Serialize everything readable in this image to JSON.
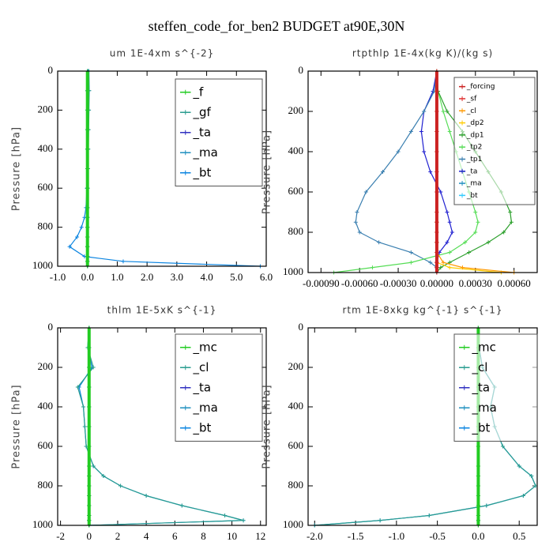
{
  "title": "steffen_code_for_ben2  BUDGET at90E,30N",
  "chart_data": [
    {
      "type": "line",
      "title": "um  1E-4xm s^{-2}",
      "ylabel": "Pressure [hPa]",
      "y": [
        0,
        100,
        200,
        300,
        400,
        500,
        600,
        700,
        750,
        800,
        850,
        900,
        950,
        975,
        1000
      ],
      "ylim": [
        1000,
        0
      ],
      "yticks": [
        0,
        200,
        400,
        600,
        800,
        1000
      ],
      "xlim": [
        -1,
        6
      ],
      "xticks": [
        {
          "value": -1,
          "label": "-1.0"
        },
        {
          "value": 0,
          "label": "0.0"
        },
        {
          "value": 1,
          "label": "1.0"
        },
        {
          "value": 2,
          "label": "2.0"
        },
        {
          "value": 3,
          "label": "3.0"
        },
        {
          "value": 4,
          "label": "4.0"
        },
        {
          "value": 5,
          "label": "5.0"
        },
        {
          "value": 6,
          "label": "6.0"
        }
      ],
      "legend": "upper right",
      "series": [
        {
          "name": "_f",
          "color": "#22cc22",
          "values": [
            0,
            0,
            0,
            0,
            0,
            0,
            0,
            0,
            0,
            0,
            0,
            0,
            0,
            0,
            0
          ]
        },
        {
          "name": "_gf",
          "color": "#2a9d8f",
          "values": [
            0.05,
            0.06,
            0.05,
            0.04,
            0.03,
            0.02,
            0.01,
            0,
            0,
            0,
            0,
            0,
            0,
            0,
            0
          ]
        },
        {
          "name": "_ta",
          "color": "#3030c0",
          "values": [
            0,
            0,
            0,
            0,
            0,
            0,
            0,
            0,
            0,
            0,
            0,
            0,
            0,
            0,
            0
          ]
        },
        {
          "name": "_ma",
          "color": "#1f8fbf",
          "values": [
            0,
            0,
            0,
            0,
            0,
            0,
            0,
            0,
            0,
            0,
            0,
            0,
            0,
            0,
            0
          ]
        },
        {
          "name": "_bt",
          "color": "#0a84e0",
          "values": [
            0.03,
            0.04,
            0.03,
            0.02,
            0.01,
            0,
            -0.02,
            -0.05,
            -0.1,
            -0.2,
            -0.35,
            -0.6,
            -0.1,
            1.2,
            5.8
          ]
        }
      ]
    },
    {
      "type": "line",
      "title": "rtpthlp  1E-4x(kg K)/(kg s)",
      "ylabel": "Pressure [hPa]",
      "y": [
        0,
        100,
        200,
        300,
        400,
        500,
        600,
        700,
        750,
        800,
        850,
        900,
        950,
        975,
        1000
      ],
      "ylim": [
        1000,
        0
      ],
      "yticks": [
        0,
        200,
        400,
        600,
        800,
        1000
      ],
      "xlim": [
        -0.001,
        0.00078
      ],
      "xticks": [
        {
          "value": -0.0009,
          "label": "-0.00090"
        },
        {
          "value": -0.0006,
          "label": "-0.00060"
        },
        {
          "value": -0.0003,
          "label": "-0.00030"
        },
        {
          "value": 0,
          "label": "0.00000"
        },
        {
          "value": 0.0003,
          "label": "0.00030"
        },
        {
          "value": 0.0006,
          "label": "0.00060"
        }
      ],
      "legend": "upper right",
      "series": [
        {
          "name": "_forcing",
          "color": "#cc2222",
          "values": [
            0,
            0,
            0,
            0,
            0,
            0,
            0,
            0,
            0,
            0,
            0,
            0,
            0,
            0,
            0
          ]
        },
        {
          "name": "_sf",
          "color": "#e03030",
          "values": [
            0,
            0,
            0,
            0,
            0,
            0,
            0,
            0,
            0,
            0,
            0,
            0,
            0,
            0,
            0
          ]
        },
        {
          "name": "_cl",
          "color": "#ff9900",
          "values": [
            0,
            0,
            0,
            0,
            0,
            0,
            0,
            0,
            0,
            0,
            0,
            0,
            5e-05,
            0.0002,
            0.0006
          ]
        },
        {
          "name": "_dp2",
          "color": "#ffcc00",
          "values": [
            0,
            0,
            0,
            0,
            0,
            0,
            0,
            0,
            0,
            0,
            0,
            0,
            0,
            0.0001,
            0.0005
          ]
        },
        {
          "name": "_dp1",
          "color": "#2ca02c",
          "values": [
            0,
            1e-05,
            8e-05,
            0.0002,
            0.0003,
            0.0004,
            0.0005,
            0.00057,
            0.00058,
            0.00052,
            0.0004,
            0.00025,
            0.0001,
            3e-05,
            0
          ]
        },
        {
          "name": "_tp2",
          "color": "#55dd55",
          "values": [
            0,
            1e-05,
            5e-05,
            0.0001,
            0.00015,
            0.0002,
            0.00025,
            0.0003,
            0.00032,
            0.0003,
            0.00022,
            0.0001,
            -0.0002,
            -0.0005,
            -0.0008
          ]
        },
        {
          "name": "_tp1",
          "color": "#3a7fb0",
          "values": [
            0,
            -2e-05,
            -0.0001,
            -0.0002,
            -0.0003,
            -0.00042,
            -0.00055,
            -0.00062,
            -0.00063,
            -0.0006,
            -0.00045,
            -0.0002,
            -5e-05,
            0,
            0
          ]
        },
        {
          "name": "_ta",
          "color": "#2020d0",
          "values": [
            0,
            -3e-05,
            -0.0001,
            -0.00012,
            -0.0001,
            -5e-05,
            3e-05,
            8e-05,
            0.0001,
            0.00012,
            8e-05,
            2e-05,
            0,
            0,
            0
          ]
        },
        {
          "name": "_ma",
          "color": "#1f8fbf",
          "values": [
            0,
            0,
            0,
            0,
            0,
            0,
            0,
            0,
            0,
            0,
            0,
            0,
            0,
            0,
            0
          ]
        },
        {
          "name": "_bt",
          "color": "#33ccff",
          "values": [
            0,
            0,
            0,
            0,
            0,
            0,
            0,
            0,
            0,
            0,
            0,
            0,
            0,
            0,
            0
          ]
        }
      ]
    },
    {
      "type": "line",
      "title": "thlm  1E-5xK s^{-1}",
      "ylabel": "Pressure [hPa]",
      "y": [
        0,
        100,
        200,
        300,
        400,
        500,
        600,
        700,
        750,
        800,
        850,
        900,
        950,
        975,
        1000
      ],
      "ylim": [
        1000,
        0
      ],
      "yticks": [
        0,
        200,
        400,
        600,
        800,
        1000
      ],
      "xlim": [
        -2.2,
        12.4
      ],
      "xticks": [
        -2,
        0,
        2,
        4,
        6,
        8,
        10,
        12
      ],
      "legend": "upper right",
      "series": [
        {
          "name": "_mc",
          "color": "#22cc22",
          "values": [
            0,
            0,
            0,
            0,
            0,
            0,
            0,
            0,
            0,
            0,
            0,
            0,
            0,
            0,
            0
          ]
        },
        {
          "name": "_cl",
          "color": "#2a9d8f",
          "values": [
            0,
            -0.1,
            0.3,
            -0.8,
            -0.4,
            -0.3,
            -0.2,
            0.3,
            1.0,
            2.2,
            4,
            6.5,
            9.5,
            10.8,
            0
          ]
        },
        {
          "name": "_ta",
          "color": "#3030c0",
          "values": [
            0,
            0,
            0,
            0,
            0,
            0,
            0,
            0,
            0,
            0,
            0,
            0,
            0,
            0,
            0
          ]
        },
        {
          "name": "_ma",
          "color": "#1f8fbf",
          "values": [
            0,
            0,
            0,
            0,
            0,
            0,
            0,
            0,
            0,
            0,
            0,
            0,
            0,
            0,
            0
          ]
        },
        {
          "name": "_bt",
          "color": "#0a84e0",
          "values": [
            0,
            -0.1,
            0.2,
            -0.7,
            -0.4,
            -0.3,
            -0.2,
            0.3,
            1.0,
            2.2,
            4,
            6.5,
            9.5,
            10.8,
            0
          ]
        }
      ]
    },
    {
      "type": "line",
      "title": "rtm  1E-8xkg kg^{-1} s^{-1}",
      "ylabel": "Pressure [hPa]",
      "y": [
        0,
        100,
        200,
        300,
        400,
        500,
        600,
        700,
        750,
        800,
        850,
        900,
        950,
        975,
        1000
      ],
      "ylim": [
        1000,
        0
      ],
      "yticks": [
        0,
        200,
        400,
        600,
        800,
        1000
      ],
      "xlim": [
        -2.08,
        0.72
      ],
      "xticks": [
        {
          "value": -2,
          "label": "-2.0"
        },
        {
          "value": -1.5,
          "label": "-1.5"
        },
        {
          "value": -1,
          "label": "-1.0"
        },
        {
          "value": -0.5,
          "label": "-0.5"
        },
        {
          "value": 0,
          "label": "0.0"
        },
        {
          "value": 0.5,
          "label": "0.5"
        }
      ],
      "legend": "upper right",
      "series": [
        {
          "name": "_mc",
          "color": "#22cc22",
          "values": [
            0,
            0,
            0,
            0,
            0,
            0,
            0,
            0,
            0,
            0,
            0,
            0,
            0,
            0,
            0
          ]
        },
        {
          "name": "_cl",
          "color": "#2a9d8f",
          "values": [
            0,
            0.01,
            0.05,
            0.2,
            0.15,
            0.2,
            0.3,
            0.5,
            0.65,
            0.7,
            0.55,
            0.1,
            -0.6,
            -1.2,
            -2.0
          ]
        },
        {
          "name": "_ta",
          "color": "#3030c0",
          "values": [
            0,
            0,
            0,
            0,
            0,
            0,
            0,
            0,
            0,
            0,
            0,
            0,
            0,
            0,
            0
          ]
        },
        {
          "name": "_ma",
          "color": "#1f8fbf",
          "values": [
            0,
            0,
            0,
            0,
            0,
            0,
            0,
            0,
            0,
            0,
            0,
            0,
            0,
            0,
            0
          ]
        },
        {
          "name": "_bt",
          "color": "#0a84e0",
          "values": [
            0,
            0.01,
            0.05,
            0.2,
            0.15,
            0.2,
            0.3,
            0.5,
            0.65,
            0.7,
            0.55,
            0.1,
            -0.6,
            -1.2,
            -2.0
          ]
        }
      ]
    }
  ]
}
